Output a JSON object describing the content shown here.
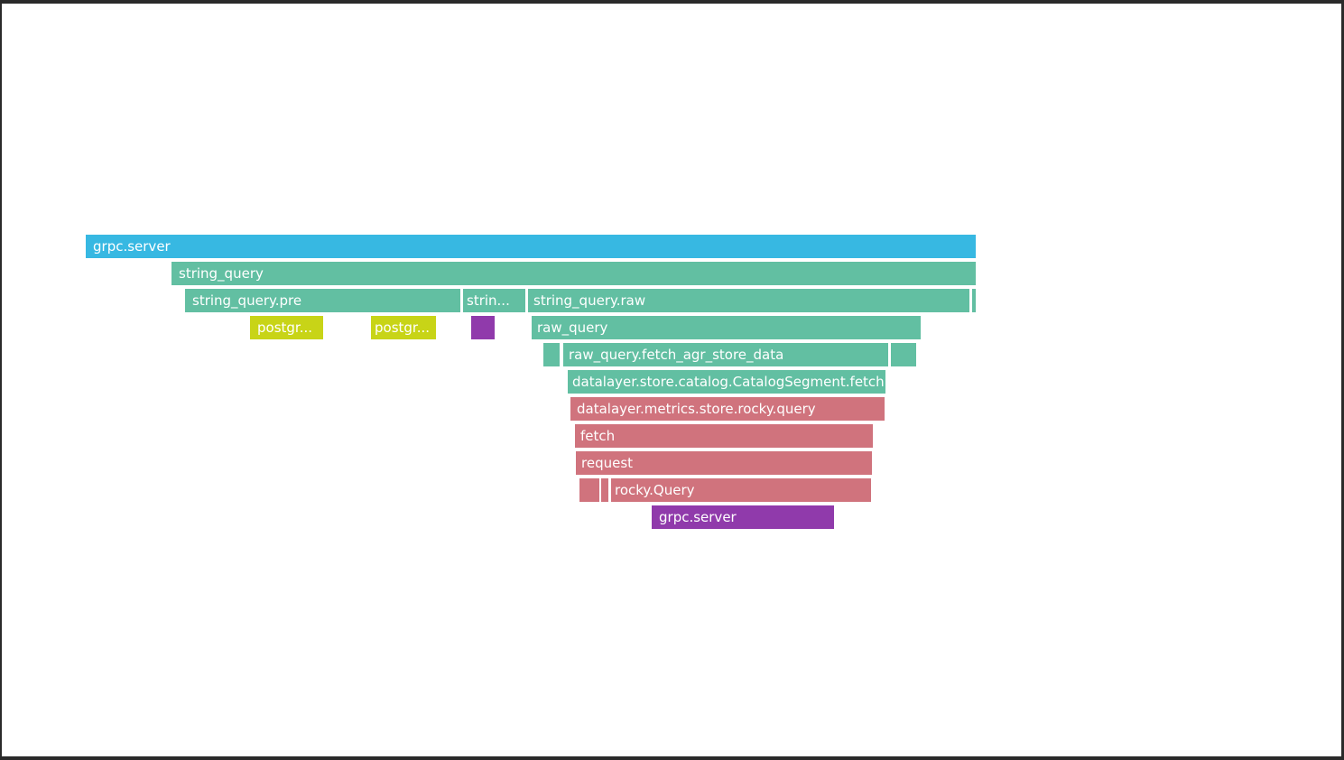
{
  "colors": {
    "blue": "#37b8e2",
    "teal": "#62bfa2",
    "yellow": "#c8d417",
    "purple": "#903aab",
    "red": "#d0737d",
    "background": "#ffffff"
  },
  "flame_graph": {
    "spans": [
      {
        "label": "grpc.server",
        "depth": 0,
        "color": "blue"
      },
      {
        "label": "string_query",
        "depth": 1,
        "color": "teal"
      },
      {
        "label": "string_query.pre",
        "depth": 2,
        "color": "teal"
      },
      {
        "label": "strin...",
        "depth": 2,
        "color": "teal"
      },
      {
        "label": "string_query.raw",
        "depth": 2,
        "color": "teal"
      },
      {
        "label": "",
        "depth": 2,
        "color": "teal"
      },
      {
        "label": "postgr...",
        "depth": 3,
        "color": "yellow"
      },
      {
        "label": "postgr...",
        "depth": 3,
        "color": "yellow"
      },
      {
        "label": "",
        "depth": 3,
        "color": "purple"
      },
      {
        "label": "raw_query",
        "depth": 3,
        "color": "teal"
      },
      {
        "label": "",
        "depth": 4,
        "color": "teal"
      },
      {
        "label": "raw_query.fetch_agr_store_data",
        "depth": 4,
        "color": "teal"
      },
      {
        "label": "",
        "depth": 4,
        "color": "teal"
      },
      {
        "label": "datalayer.store.catalog.CatalogSegment.fetch",
        "depth": 5,
        "color": "teal"
      },
      {
        "label": "datalayer.metrics.store.rocky.query",
        "depth": 6,
        "color": "red"
      },
      {
        "label": "fetch",
        "depth": 7,
        "color": "red"
      },
      {
        "label": "request",
        "depth": 8,
        "color": "red"
      },
      {
        "label": "",
        "depth": 9,
        "color": "red"
      },
      {
        "label": "",
        "depth": 9,
        "color": "red"
      },
      {
        "label": "rocky.Query",
        "depth": 9,
        "color": "red"
      },
      {
        "label": "grpc.server",
        "depth": 10,
        "color": "purple"
      }
    ]
  }
}
